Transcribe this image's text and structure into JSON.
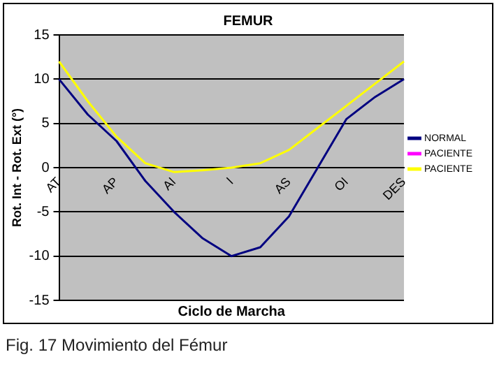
{
  "chart_data": {
    "type": "line",
    "title": "FEMUR",
    "xlabel": "Ciclo de Marcha",
    "ylabel": "Rot. Int - Rot. Ext (°)",
    "categories": [
      "AT",
      null,
      "AP",
      null,
      "AI",
      null,
      "I",
      null,
      "AS",
      null,
      "OI",
      null,
      "DES"
    ],
    "series": [
      {
        "name": "NORMAL",
        "color": "#000080",
        "values": [
          10,
          6,
          3,
          -1.5,
          -5,
          -8,
          -10,
          -9,
          -5.5,
          0,
          5.5,
          8,
          10
        ]
      },
      {
        "name": "PACIENTE",
        "color": "#ff00ff",
        "values": [
          null,
          null,
          null,
          null,
          null,
          null,
          null,
          null,
          null,
          null,
          null,
          null,
          null
        ]
      },
      {
        "name": "PACIENTE",
        "color": "#ffff00",
        "values": [
          12,
          7.5,
          3.5,
          0.5,
          -0.5,
          -0.3,
          0,
          0.5,
          2,
          4.5,
          7,
          9.5,
          12
        ]
      }
    ],
    "ylim": [
      -15,
      15
    ],
    "yticks": [
      -15,
      -10,
      -5,
      0,
      5,
      10,
      15
    ],
    "grid": "y",
    "legend": "right",
    "marker": "none",
    "line_style": "solid",
    "annotations": [
      "Fig. 17 Movimiento del Fémur"
    ]
  }
}
